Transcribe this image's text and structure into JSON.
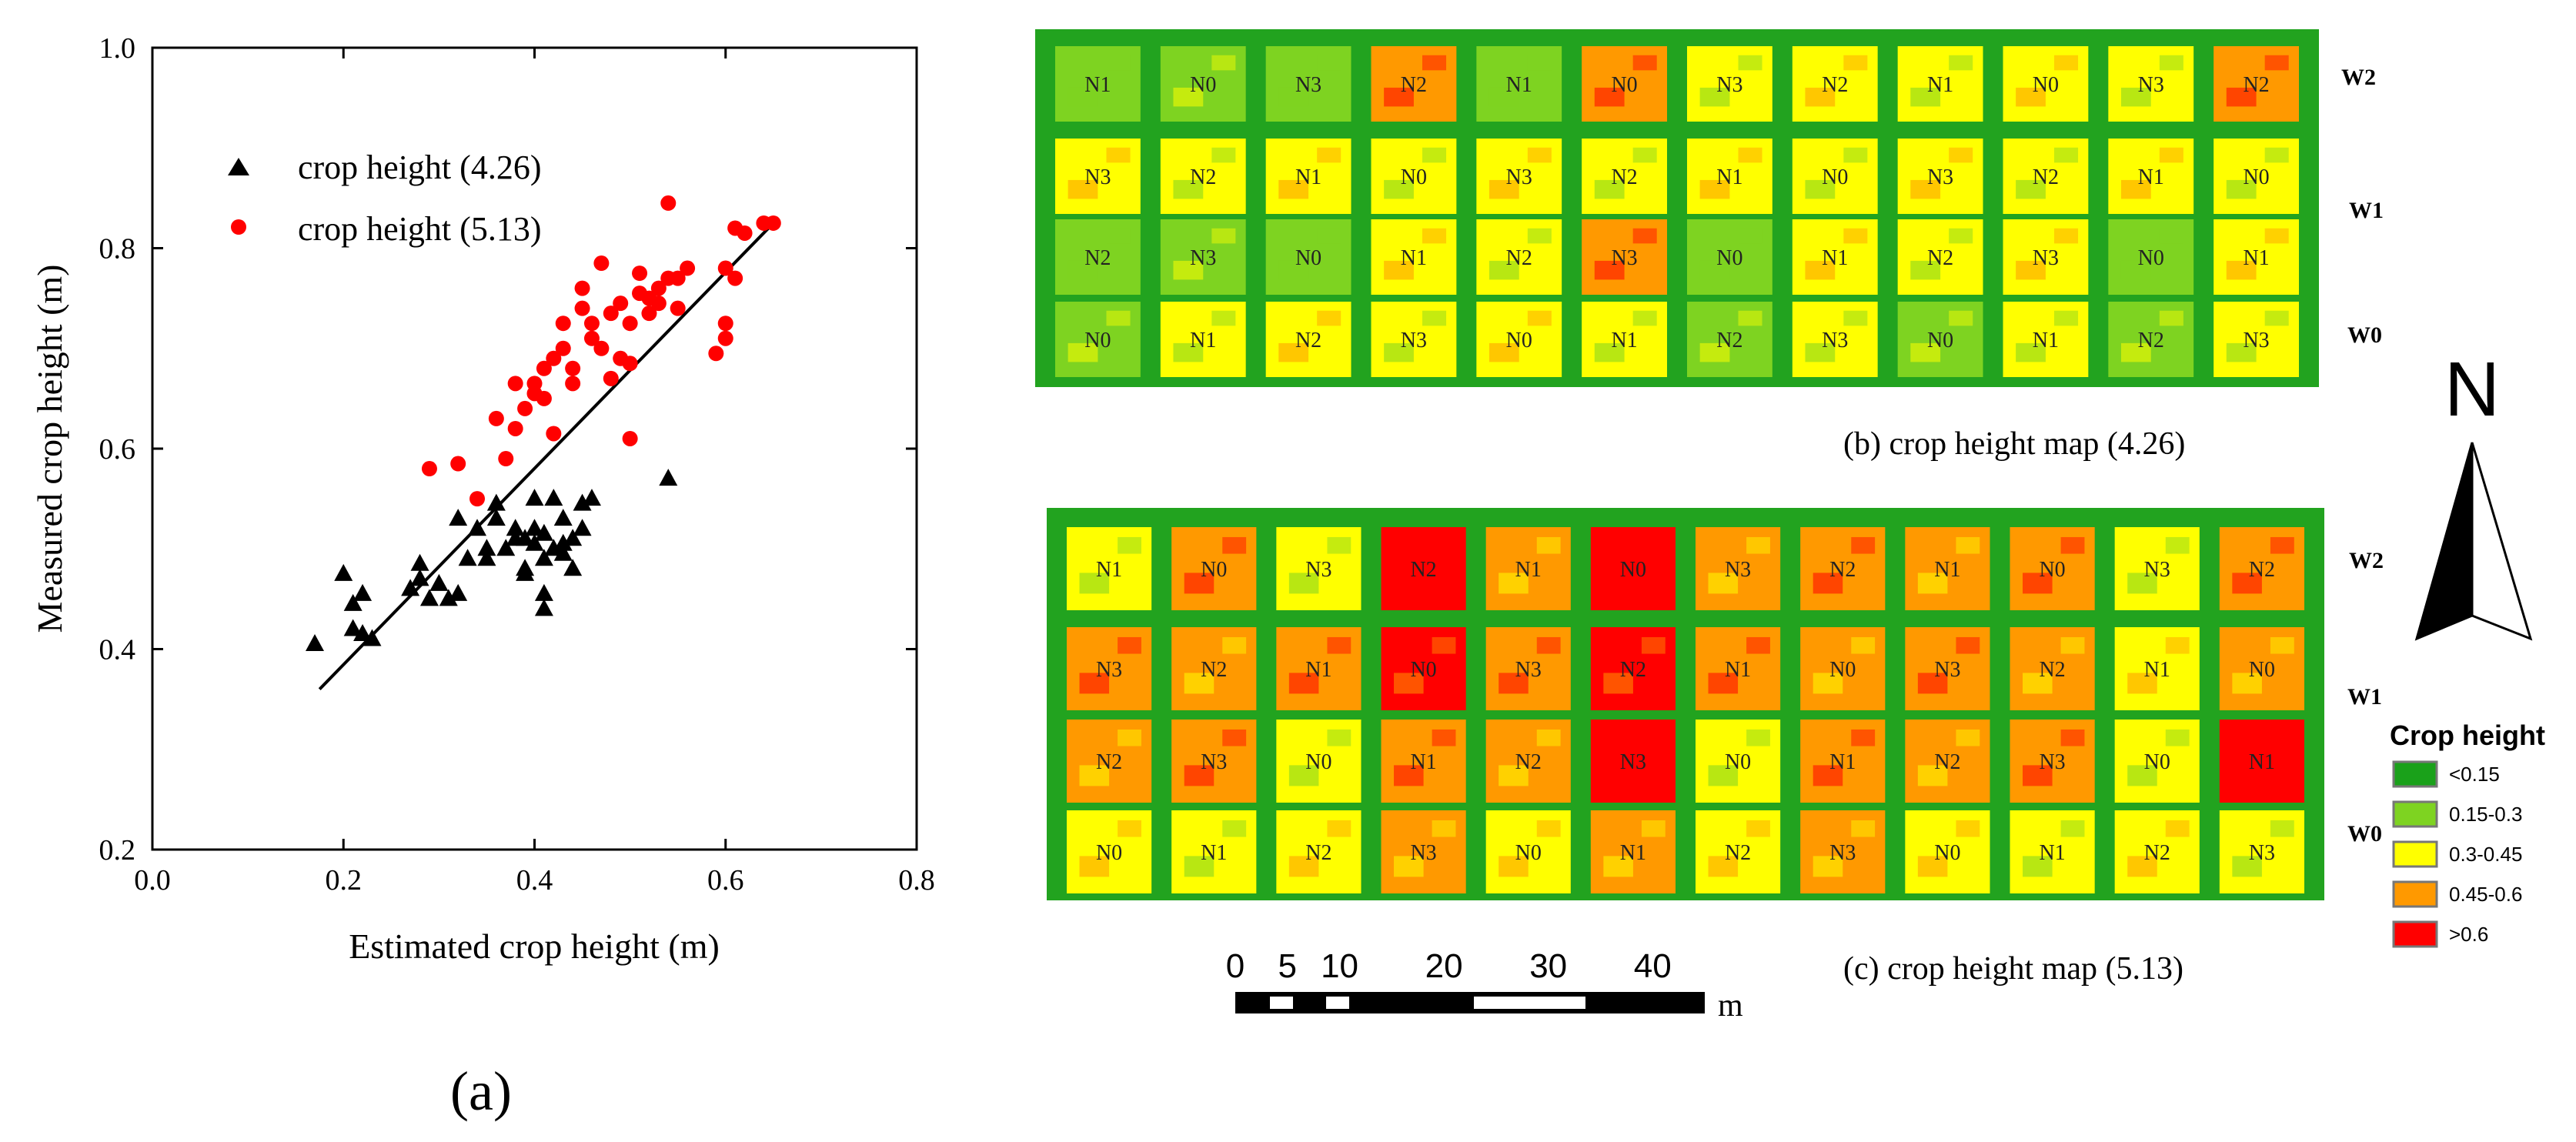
{
  "chart_data": {
    "type": "scatter",
    "panel_label": "(a)",
    "xlabel": "Estimated crop height (m)",
    "ylabel": "Measured crop height (m)",
    "xlim": [
      0.0,
      0.8
    ],
    "ylim": [
      0.2,
      1.0
    ],
    "x_ticks": [
      "0.0",
      "0.2",
      "0.4",
      "0.6",
      "0.8"
    ],
    "y_ticks": [
      "0.2",
      "0.4",
      "0.6",
      "0.8",
      "1.0"
    ],
    "x_tick_values": [
      0.0,
      0.2,
      0.4,
      0.6,
      0.8
    ],
    "y_tick_values": [
      0.2,
      0.4,
      0.6,
      0.8,
      1.0
    ],
    "legend_position": "upper-left",
    "fit_line": {
      "x": [
        0.175,
        0.65
      ],
      "y": [
        0.36,
        0.825
      ]
    },
    "series": [
      {
        "name": "crop height (4.26)",
        "marker": "triangle",
        "color": "#000000",
        "points": [
          [
            0.17,
            0.405
          ],
          [
            0.2,
            0.475
          ],
          [
            0.21,
            0.445
          ],
          [
            0.22,
            0.455
          ],
          [
            0.21,
            0.42
          ],
          [
            0.22,
            0.415
          ],
          [
            0.23,
            0.41
          ],
          [
            0.27,
            0.46
          ],
          [
            0.28,
            0.47
          ],
          [
            0.28,
            0.485
          ],
          [
            0.29,
            0.45
          ],
          [
            0.3,
            0.465
          ],
          [
            0.31,
            0.45
          ],
          [
            0.32,
            0.455
          ],
          [
            0.32,
            0.53
          ],
          [
            0.33,
            0.49
          ],
          [
            0.34,
            0.52
          ],
          [
            0.35,
            0.5
          ],
          [
            0.35,
            0.49
          ],
          [
            0.36,
            0.53
          ],
          [
            0.36,
            0.545
          ],
          [
            0.37,
            0.5
          ],
          [
            0.38,
            0.51
          ],
          [
            0.38,
            0.52
          ],
          [
            0.39,
            0.51
          ],
          [
            0.39,
            0.48
          ],
          [
            0.4,
            0.52
          ],
          [
            0.4,
            0.55
          ],
          [
            0.4,
            0.505
          ],
          [
            0.41,
            0.515
          ],
          [
            0.41,
            0.49
          ],
          [
            0.41,
            0.455
          ],
          [
            0.41,
            0.44
          ],
          [
            0.42,
            0.5
          ],
          [
            0.42,
            0.55
          ],
          [
            0.43,
            0.53
          ],
          [
            0.43,
            0.505
          ],
          [
            0.44,
            0.51
          ],
          [
            0.44,
            0.48
          ],
          [
            0.45,
            0.545
          ],
          [
            0.45,
            0.52
          ],
          [
            0.46,
            0.55
          ],
          [
            0.54,
            0.57
          ],
          [
            0.39,
            0.475
          ],
          [
            0.43,
            0.495
          ]
        ]
      },
      {
        "name": "crop height (5.13)",
        "marker": "circle",
        "color": "#ff0000",
        "points": [
          [
            0.29,
            0.58
          ],
          [
            0.32,
            0.585
          ],
          [
            0.34,
            0.55
          ],
          [
            0.36,
            0.63
          ],
          [
            0.37,
            0.59
          ],
          [
            0.38,
            0.665
          ],
          [
            0.38,
            0.62
          ],
          [
            0.39,
            0.64
          ],
          [
            0.4,
            0.655
          ],
          [
            0.4,
            0.665
          ],
          [
            0.41,
            0.68
          ],
          [
            0.41,
            0.65
          ],
          [
            0.42,
            0.69
          ],
          [
            0.42,
            0.615
          ],
          [
            0.43,
            0.7
          ],
          [
            0.43,
            0.725
          ],
          [
            0.44,
            0.665
          ],
          [
            0.44,
            0.68
          ],
          [
            0.45,
            0.74
          ],
          [
            0.45,
            0.76
          ],
          [
            0.46,
            0.725
          ],
          [
            0.46,
            0.71
          ],
          [
            0.47,
            0.7
          ],
          [
            0.47,
            0.785
          ],
          [
            0.48,
            0.735
          ],
          [
            0.48,
            0.67
          ],
          [
            0.49,
            0.745
          ],
          [
            0.49,
            0.69
          ],
          [
            0.5,
            0.685
          ],
          [
            0.5,
            0.61
          ],
          [
            0.5,
            0.725
          ],
          [
            0.51,
            0.775
          ],
          [
            0.51,
            0.755
          ],
          [
            0.52,
            0.735
          ],
          [
            0.52,
            0.75
          ],
          [
            0.53,
            0.76
          ],
          [
            0.53,
            0.745
          ],
          [
            0.54,
            0.845
          ],
          [
            0.54,
            0.77
          ],
          [
            0.55,
            0.77
          ],
          [
            0.55,
            0.74
          ],
          [
            0.56,
            0.78
          ],
          [
            0.6,
            0.725
          ],
          [
            0.6,
            0.71
          ],
          [
            0.59,
            0.695
          ],
          [
            0.6,
            0.78
          ],
          [
            0.61,
            0.82
          ],
          [
            0.62,
            0.815
          ],
          [
            0.64,
            0.825
          ],
          [
            0.65,
            0.825
          ],
          [
            0.61,
            0.77
          ]
        ]
      }
    ]
  },
  "maps": {
    "rows_top_to_bottom": [
      "W2",
      "W1",
      "W0"
    ],
    "legend": {
      "title": "Crop height",
      "classes": [
        {
          "label": "<0.15",
          "color": "#1aa11a"
        },
        {
          "label": "0.15-0.3",
          "color": "#7ed321"
        },
        {
          "label": "0.3-0.45",
          "color": "#ffff00"
        },
        {
          "label": "0.45-0.6",
          "color": "#ff9900"
        },
        {
          "label": ">0.6",
          "color": "#ff0000"
        }
      ]
    },
    "north_label": "N",
    "scale_bar": {
      "tick_labels": [
        "0",
        "5",
        "10",
        "20",
        "30",
        "40"
      ],
      "tick_values": [
        0,
        5,
        10,
        20,
        30,
        40
      ],
      "unit": "m"
    },
    "panels": [
      {
        "caption": "(b) crop height map (4.26)",
        "row_labels": [
          "W2",
          "W1",
          "W0"
        ],
        "plots": [
          [
            "N1",
            "N0",
            "N3",
            "N2",
            "N1",
            "N0",
            "N3",
            "N2",
            "N1",
            "N0",
            "N3",
            "N2"
          ],
          [
            "N3",
            "N2",
            "N1",
            "N0",
            "N3",
            "N2",
            "N1",
            "N0",
            "N3",
            "N2",
            "N1",
            "N0"
          ],
          [
            "N2",
            "N3",
            "N0",
            "N1",
            "N2",
            "N3",
            "N0",
            "N1",
            "N2",
            "N3",
            "N0",
            "N1"
          ],
          [
            "N0",
            "N1",
            "N2",
            "N3",
            "N0",
            "N1",
            "N2",
            "N3",
            "N0",
            "N1",
            "N2",
            "N3"
          ]
        ],
        "plot_classes": [
          [
            1,
            1,
            1,
            3,
            1,
            3,
            2,
            2,
            2,
            2,
            2,
            3
          ],
          [
            2,
            2,
            2,
            2,
            2,
            2,
            2,
            2,
            2,
            2,
            2,
            2
          ],
          [
            1,
            1,
            1,
            2,
            2,
            3,
            1,
            2,
            2,
            2,
            1,
            2
          ],
          [
            1,
            2,
            2,
            2,
            2,
            2,
            1,
            2,
            1,
            2,
            1,
            2
          ]
        ]
      },
      {
        "caption": "(c) crop height map (5.13)",
        "row_labels": [
          "W2",
          "W1",
          "W0"
        ],
        "plots": [
          [
            "N1",
            "N0",
            "N3",
            "N2",
            "N1",
            "N0",
            "N3",
            "N2",
            "N1",
            "N0",
            "N3",
            "N2"
          ],
          [
            "N3",
            "N2",
            "N1",
            "N0",
            "N3",
            "N2",
            "N1",
            "N0",
            "N3",
            "N2",
            "N1",
            "N0"
          ],
          [
            "N2",
            "N3",
            "N0",
            "N1",
            "N2",
            "N3",
            "N0",
            "N1",
            "N2",
            "N3",
            "N0",
            "N1"
          ],
          [
            "N0",
            "N1",
            "N2",
            "N3",
            "N0",
            "N1",
            "N2",
            "N3",
            "N0",
            "N1",
            "N2",
            "N3"
          ]
        ],
        "plot_classes": [
          [
            2,
            3,
            2,
            4,
            3,
            4,
            3,
            3,
            3,
            3,
            2,
            3
          ],
          [
            3,
            3,
            3,
            4,
            3,
            4,
            3,
            3,
            3,
            3,
            2,
            3
          ],
          [
            3,
            3,
            2,
            3,
            3,
            4,
            2,
            3,
            3,
            3,
            2,
            4
          ],
          [
            2,
            2,
            2,
            3,
            2,
            3,
            2,
            3,
            2,
            2,
            2,
            2
          ]
        ]
      }
    ]
  }
}
